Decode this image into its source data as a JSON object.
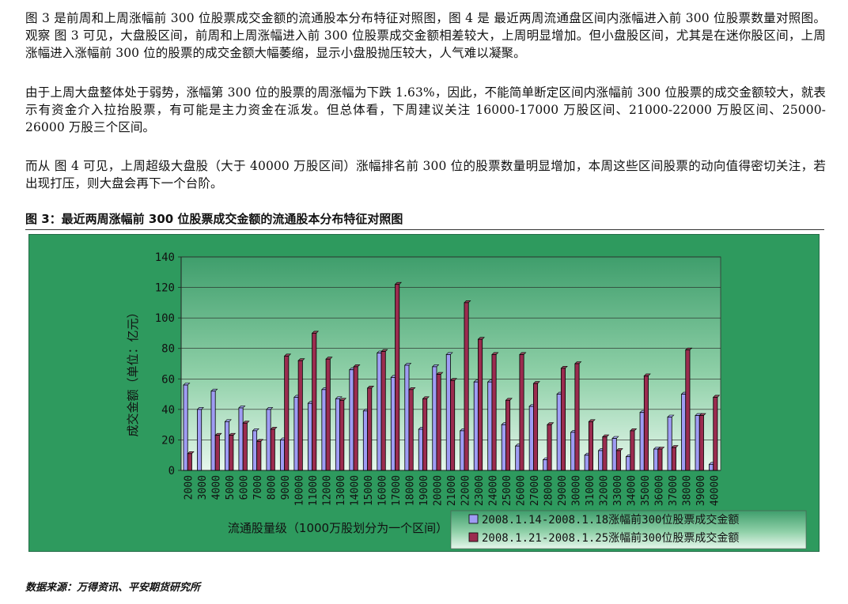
{
  "paragraphs": {
    "p1": "图 3 是前周和上周涨幅前 300 位股票成交金额的流通股本分布特征对照图，图 4 是 最近两周流通盘区间内涨幅进入前 300 位股票数量对照图。观察 图 3 可见，大盘股区间，前周和上周涨幅进入前 300 位股票成交金额相差较大，上周明显增加。但小盘股区间，尤其是在迷你股区间，上周涨幅进入涨幅前 300 位的股票的成交金额大幅萎缩，显示小盘股抛压较大，人气难以凝聚。",
    "p2": "由于上周大盘整体处于弱势，涨幅第 300 位的股票的周涨幅为下跌 1.63%，因此，不能简单断定区间内涨幅前 300 位股票的成交金额较大，就表示有资金介入拉抬股票，有可能是主力资金在派发。但总体看，下周建议关注 16000-17000 万股区间、21000-22000 万股区间、25000-26000 万股三个区间。",
    "p3": "而从 图 4 可见，上周超级大盘股（大于 40000 万股区间）涨幅排名前 300 位的股票数量明显增加，本周这些区间股票的动向值得密切关注，若出现打压，则大盘会再下一个台阶。"
  },
  "figure_title": "图 3：最近两周涨幅前 300 位股票成交金额的流通股本分布特征对照图",
  "source_note": "数据来源：万得资讯、平安期货研究所",
  "colors": {
    "frame_bg": "#2e9a5e",
    "series1": "#9f9cf4",
    "series2": "#9b2c4f"
  },
  "chart_data": {
    "type": "bar",
    "xlabel": "流通股量级（1000万股划分为一个区间）",
    "ylabel": "成交金额（单位：亿元）",
    "ylim": [
      0,
      140
    ],
    "yticks": [
      0,
      20,
      40,
      60,
      80,
      100,
      120,
      140
    ],
    "grid": true,
    "legend_position": "bottom-right",
    "categories": [
      "2000",
      "3000",
      "4000",
      "5000",
      "6000",
      "7000",
      "8000",
      "9000",
      "10000",
      "11000",
      "12000",
      "13000",
      "14000",
      "15000",
      "16000",
      "17000",
      "18000",
      "19000",
      "20000",
      "21000",
      "22000",
      "23000",
      "24000",
      "25000",
      "26000",
      "27000",
      "28000",
      "29000",
      "30000",
      "31000",
      "32000",
      "33000",
      "34000",
      "35000",
      "36000",
      "37000",
      "38000",
      "39000",
      "40000"
    ],
    "series": [
      {
        "name": "2008.1.14-2008.1.18涨幅前300位股票成交金额",
        "values": [
          56,
          40,
          52,
          32,
          41,
          26,
          40,
          20,
          48,
          44,
          53,
          47,
          66,
          39,
          77,
          61,
          69,
          27,
          68,
          76,
          26,
          58,
          58,
          30,
          16,
          42,
          7,
          50,
          25,
          10,
          13,
          21,
          9,
          38,
          14,
          35,
          50,
          36,
          4
        ]
      },
      {
        "name": "2008.1.21-2008.1.25涨幅前300位股票成交金额",
        "values": [
          11,
          0,
          23,
          23,
          31,
          19,
          27,
          75,
          72,
          90,
          73,
          46,
          68,
          54,
          78,
          122,
          53,
          47,
          63,
          59,
          110,
          86,
          76,
          46,
          76,
          57,
          30,
          67,
          70,
          32,
          22,
          13,
          26,
          62,
          14,
          15,
          79,
          36,
          48
        ]
      }
    ]
  }
}
